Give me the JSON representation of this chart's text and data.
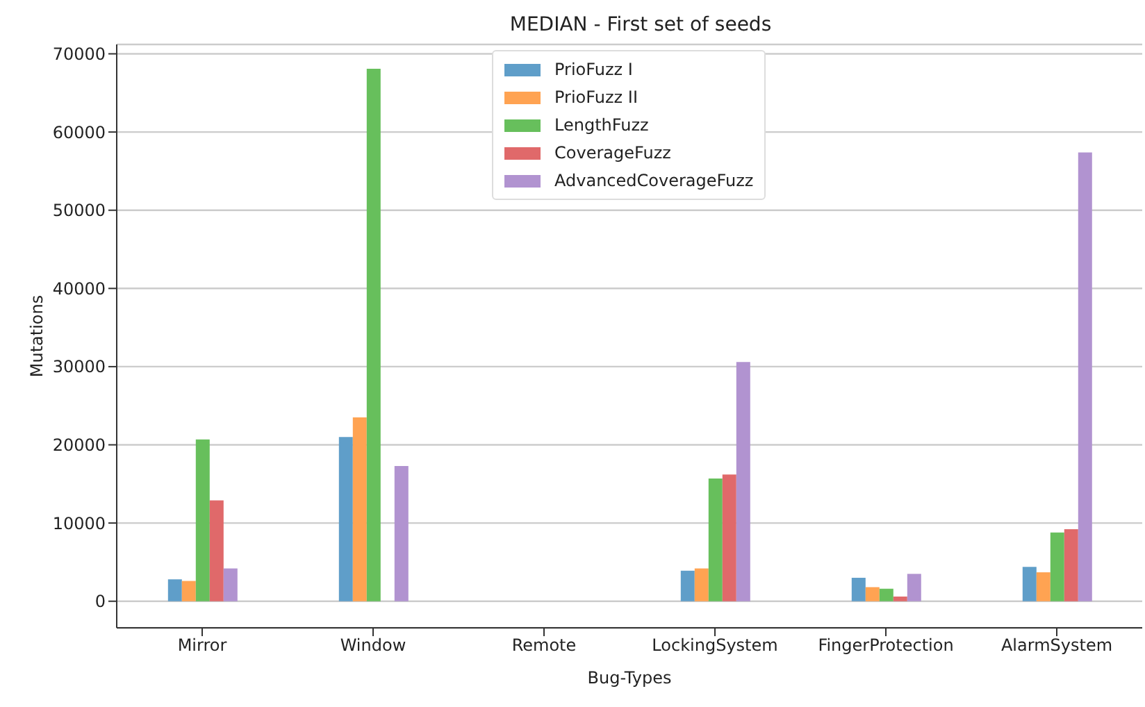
{
  "chart_data": {
    "type": "bar",
    "title": "MEDIAN - First set of seeds",
    "xlabel": "Bug-Types",
    "ylabel": "Mutations",
    "categories": [
      "Mirror",
      "Window",
      "Remote",
      "LockingSystem",
      "FingerProtection",
      "AlarmSystem"
    ],
    "series": [
      {
        "name": "PrioFuzz I",
        "color": "#5f9ec9",
        "values": [
          2800,
          21000,
          null,
          3900,
          3000,
          4400
        ]
      },
      {
        "name": "PrioFuzz II",
        "color": "#ffa352",
        "values": [
          2600,
          23500,
          null,
          4200,
          1800,
          3700
        ]
      },
      {
        "name": "LengthFuzz",
        "color": "#67bf5c",
        "values": [
          20700,
          68100,
          null,
          15700,
          1600,
          8800
        ]
      },
      {
        "name": "CoverageFuzz",
        "color": "#e0696a",
        "values": [
          12900,
          null,
          null,
          16200,
          600,
          9200
        ]
      },
      {
        "name": "AdvancedCoverageFuzz",
        "color": "#b193d0",
        "values": [
          4200,
          17300,
          null,
          30600,
          3500,
          57400
        ]
      }
    ],
    "ylim": [
      -3400,
      71200
    ],
    "yticks": [
      0,
      10000,
      20000,
      30000,
      40000,
      50000,
      60000,
      70000
    ],
    "grid": "y",
    "legend": "top"
  }
}
